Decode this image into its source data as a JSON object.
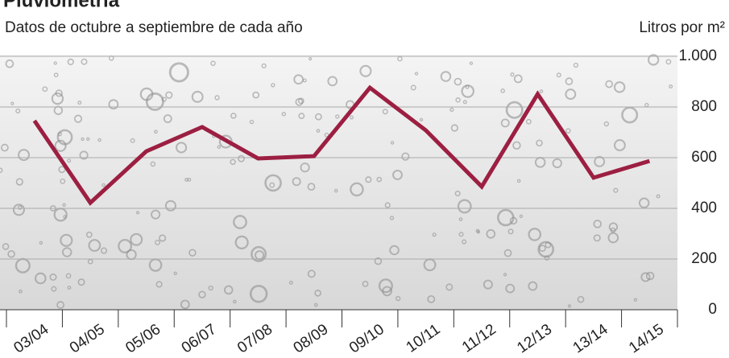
{
  "chart_data": {
    "type": "line",
    "title": "Pluviometría",
    "subtitle": "Datos de octubre a septiembre de cada año",
    "y_label": "Litros por m²",
    "categories": [
      "03/04",
      "04/05",
      "05/06",
      "06/07",
      "07/08",
      "08/09",
      "09/10",
      "10/11",
      "11/12",
      "12/13",
      "13/14",
      "14/15"
    ],
    "values": [
      746,
      422,
      625,
      721,
      597,
      606,
      876,
      708,
      486,
      851,
      521,
      587
    ],
    "color": "#9c1f42",
    "ylim": [
      0,
      1000
    ],
    "yticks": [
      0,
      200,
      400,
      600,
      800,
      {
        "value": 1000,
        "label": "1.000"
      }
    ],
    "grid": true
  }
}
